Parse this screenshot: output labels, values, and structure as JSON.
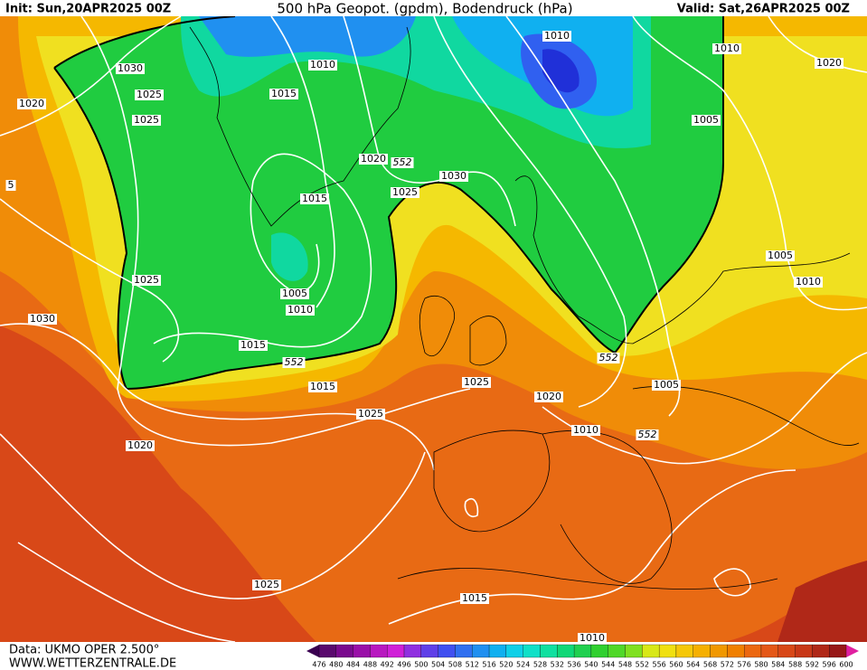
{
  "header": {
    "init": "Init: Sun,20APR2025 00Z",
    "title": "500 hPa Geopot. (gpdm), Bodendruck (hPa)",
    "valid": "Valid: Sat,26APR2025 00Z"
  },
  "isobar_labels": [
    "1030",
    "1025",
    "1025",
    "1020",
    "5",
    "1025",
    "1030",
    "1010",
    "1015",
    "1020",
    "552",
    "1025",
    "1030",
    "1015",
    "1005",
    "1010",
    "1015",
    "552",
    "1015",
    "1025",
    "1020",
    "1025",
    "1020",
    "1010",
    "552",
    "1005",
    "552",
    "1010",
    "1010",
    "1020",
    "1005",
    "1005",
    "1010",
    "1025",
    "1015",
    "1010"
  ],
  "legend": {
    "ticks": [
      476,
      480,
      484,
      488,
      492,
      496,
      500,
      504,
      508,
      512,
      516,
      520,
      524,
      528,
      532,
      536,
      540,
      544,
      548,
      552,
      556,
      560,
      564,
      568,
      572,
      576,
      580,
      584,
      588,
      592,
      596,
      600
    ],
    "colors": [
      "#5a0a6e",
      "#7a0a8e",
      "#9a10a8",
      "#b818c0",
      "#d020d8",
      "#9030e0",
      "#6040e8",
      "#4050f0",
      "#3070f0",
      "#2090f0",
      "#10b0f0",
      "#10d0e8",
      "#10e0c8",
      "#10e0a0",
      "#10d878",
      "#20d050",
      "#30d030",
      "#50d828",
      "#80e020",
      "#d8e818",
      "#f0e010",
      "#f5c808",
      "#f5b000",
      "#f09800",
      "#f08000",
      "#ec6810",
      "#e45818",
      "#d84818",
      "#c83818",
      "#b02818",
      "#981818"
    ]
  },
  "footer": {
    "source": "Data: UKMO OPER 2.500°",
    "site": "WWW.WETTERZENTRALE.DE"
  }
}
